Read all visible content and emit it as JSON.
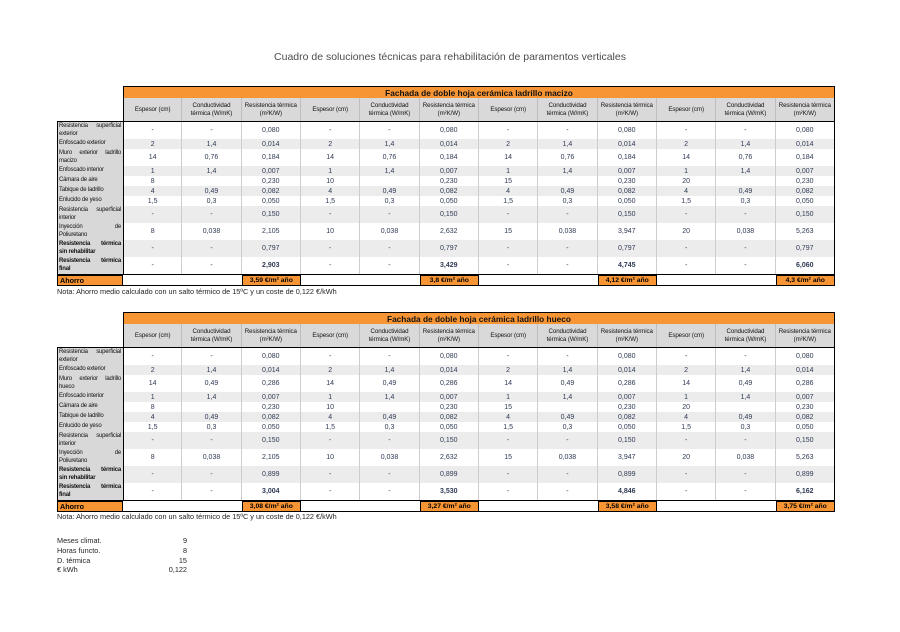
{
  "title": "Cuadro de soluciones técnicas para rehabilitación de paramentos verticales",
  "note": "Nota: Ahorro medio calculado con un salto térmico de 15ºC y un coste de 0,122 €/kWh",
  "column_headers": [
    "Espesor (cm)",
    "Conductividad térmica (W/mK)",
    "Resistencia térmica (m²K/W)"
  ],
  "groups": 4,
  "tables": [
    {
      "banner": "Fachada de doble hoja cerámica ladrillo macizo",
      "rows": [
        {
          "label": "Resistencia superficial\nexterior",
          "cells": [
            "-",
            "-",
            "0,080",
            "-",
            "-",
            "0,080",
            "-",
            "-",
            "0,080",
            "-",
            "-",
            "0,080"
          ]
        },
        {
          "label": "Enfoscado exterior",
          "cells": [
            "2",
            "1,4",
            "0,014",
            "2",
            "1,4",
            "0,014",
            "2",
            "1,4",
            "0,014",
            "2",
            "1,4",
            "0,014"
          ]
        },
        {
          "label": "Muro exterior ladrillo\nmacizo",
          "cells": [
            "14",
            "0,76",
            "0,184",
            "14",
            "0,76",
            "0,184",
            "14",
            "0,76",
            "0,184",
            "14",
            "0,76",
            "0,184"
          ]
        },
        {
          "label": "Enfoscado interior",
          "cells": [
            "1",
            "1,4",
            "0,007",
            "1",
            "1,4",
            "0,007",
            "1",
            "1,4",
            "0,007",
            "1",
            "1,4",
            "0,007"
          ]
        },
        {
          "label": "Cámara de aire",
          "cells": [
            "8",
            "",
            "0,230",
            "10",
            "",
            "0,230",
            "15",
            "",
            "0,230",
            "20",
            "",
            "0,230"
          ]
        },
        {
          "label": "Tabique de ladrillo",
          "cells": [
            "4",
            "0,49",
            "0,082",
            "4",
            "0,49",
            "0,082",
            "4",
            "0,49",
            "0,082",
            "4",
            "0,49",
            "0,082"
          ]
        },
        {
          "label": "Enlucido de yeso",
          "cells": [
            "1,5",
            "0,3",
            "0,050",
            "1,5",
            "0,3",
            "0,050",
            "1,5",
            "0,3",
            "0,050",
            "1,5",
            "0,3",
            "0,050"
          ]
        },
        {
          "label": "Resistencia superficial\ninterior",
          "cells": [
            "-",
            "-",
            "0,150",
            "-",
            "-",
            "0,150",
            "-",
            "-",
            "0,150",
            "-",
            "-",
            "0,150"
          ]
        },
        {
          "label": "Inyección de\nPoliuretano",
          "cells": [
            "8",
            "0,038",
            "2,105",
            "10",
            "0,038",
            "2,632",
            "15",
            "0,038",
            "3,947",
            "20",
            "0,038",
            "5,263"
          ]
        },
        {
          "label": "Resistencia térmica\nsin rehabilitar",
          "bold": true,
          "cells": [
            "-",
            "-",
            "0,797",
            "-",
            "-",
            "0,797",
            "-",
            "-",
            "0,797",
            "-",
            "-",
            "0,797"
          ]
        },
        {
          "label": "Resistencia térmica\nfinal",
          "bold": true,
          "bold_values": true,
          "cells": [
            "-",
            "-",
            "2,903",
            "-",
            "-",
            "3,429",
            "-",
            "-",
            "4,745",
            "-",
            "-",
            "6,060"
          ]
        }
      ],
      "ahorro": {
        "label": "Ahorro",
        "values": [
          "3,59 €/m² año",
          "3,8 €/m² año",
          "4,12 €/m² año",
          "4,3 €/m² año"
        ]
      }
    },
    {
      "banner": "Fachada de doble hoja cerámica ladrillo hueco",
      "rows": [
        {
          "label": "Resistencia superficial\nexterior",
          "cells": [
            "-",
            "-",
            "0,080",
            "-",
            "-",
            "0,080",
            "-",
            "-",
            "0,080",
            "-",
            "-",
            "0,080"
          ]
        },
        {
          "label": "Enfoscado exterior",
          "cells": [
            "2",
            "1,4",
            "0,014",
            "2",
            "1,4",
            "0,014",
            "2",
            "1,4",
            "0,014",
            "2",
            "1,4",
            "0,014"
          ]
        },
        {
          "label": "Muro exterior ladrillo\nhueco",
          "cells": [
            "14",
            "0,49",
            "0,286",
            "14",
            "0,49",
            "0,286",
            "14",
            "0,49",
            "0,286",
            "14",
            "0,49",
            "0,286"
          ]
        },
        {
          "label": "Enfoscado interior",
          "cells": [
            "1",
            "1,4",
            "0,007",
            "1",
            "1,4",
            "0,007",
            "1",
            "1,4",
            "0,007",
            "1",
            "1,4",
            "0,007"
          ]
        },
        {
          "label": "Cámara de aire",
          "cells": [
            "8",
            "",
            "0,230",
            "10",
            "",
            "0,230",
            "15",
            "",
            "0,230",
            "20",
            "",
            "0,230"
          ]
        },
        {
          "label": "Tabique de ladrillo",
          "cells": [
            "4",
            "0,49",
            "0,082",
            "4",
            "0,49",
            "0,082",
            "4",
            "0,49",
            "0,082",
            "4",
            "0,49",
            "0,082"
          ]
        },
        {
          "label": "Enlucido de yeso",
          "cells": [
            "1,5",
            "0,3",
            "0,050",
            "1,5",
            "0,3",
            "0,050",
            "1,5",
            "0,3",
            "0,050",
            "1,5",
            "0,3",
            "0,050"
          ]
        },
        {
          "label": "Resistencia superficial\ninterior",
          "cells": [
            "-",
            "-",
            "0,150",
            "-",
            "-",
            "0,150",
            "-",
            "-",
            "0,150",
            "-",
            "-",
            "0,150"
          ]
        },
        {
          "label": "Inyección de\nPoliuretano",
          "cells": [
            "8",
            "0,038",
            "2,105",
            "10",
            "0,038",
            "2,632",
            "15",
            "0,038",
            "3,947",
            "20",
            "0,038",
            "5,263"
          ]
        },
        {
          "label": "Resistencia térmica\nsin rehabilitar",
          "bold": true,
          "cells": [
            "-",
            "-",
            "0,899",
            "-",
            "-",
            "0,899",
            "-",
            "-",
            "0,899",
            "-",
            "-",
            "0,899"
          ]
        },
        {
          "label": "Resistencia térmica\nfinal",
          "bold": true,
          "bold_values": true,
          "cells": [
            "-",
            "-",
            "3,004",
            "-",
            "-",
            "3,530",
            "-",
            "-",
            "4,846",
            "-",
            "-",
            "6,162"
          ]
        }
      ],
      "ahorro": {
        "label": "Ahorro",
        "values": [
          "3,08 €/m² año",
          "3,27 €/m² año",
          "3,58 €/m² año",
          "3,75 €/m² año"
        ]
      }
    }
  ],
  "params": [
    {
      "label": "Meses climat.",
      "value": "9"
    },
    {
      "label": "Horas functo.",
      "value": "8"
    },
    {
      "label": "D. térmica",
      "value": "15"
    },
    {
      "label": "€ kWh",
      "value": "0,122"
    }
  ],
  "colors": {
    "banner_orange": "#F79535",
    "header_gray": "#D9D9D9",
    "label_gray": "#D8D8D8",
    "band_gray": "#ECECEC",
    "grid_gray": "#CDCDCD",
    "value_text": "#2F3A54",
    "border_black": "#000000"
  }
}
